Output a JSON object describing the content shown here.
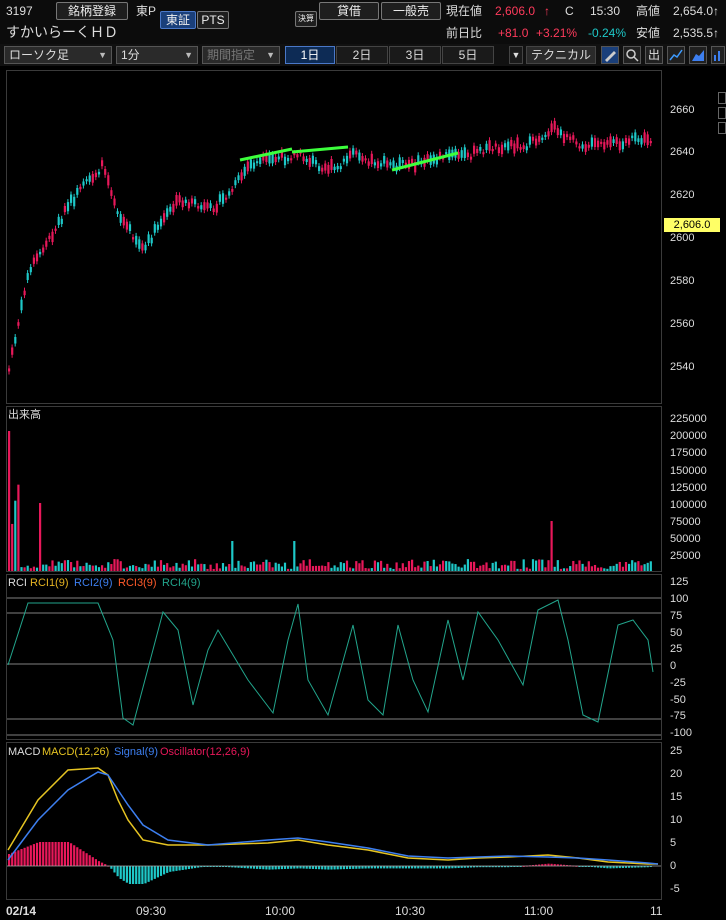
{
  "header": {
    "code": "3197",
    "register_label": "銘柄登録",
    "market": "東P",
    "exchange_tabs": [
      "東証",
      "PTS"
    ],
    "kessan_badge": "決算",
    "margin_loan": "貸借",
    "margin_general": "一般売",
    "current_label": "現在値",
    "current_value": "2,606.0",
    "current_arrow": "↑",
    "close_mark": "C",
    "time": "15:30",
    "high_label": "高値",
    "high_value": "2,654.0↑",
    "name": "すかいらーくＨＤ",
    "change_label": "前日比",
    "change_value": "+81.0",
    "change_pct": "+3.21%",
    "sub_pct": "-0.24%",
    "low_label": "安値",
    "low_value": "2,535.5↑"
  },
  "toolbar": {
    "chart_type": "ローソク足",
    "interval": "1分",
    "period": "期間指定",
    "day_tabs": [
      "1日",
      "2日",
      "3日",
      "5日"
    ],
    "technical": "テクニカル",
    "out_label": "出"
  },
  "colors": {
    "up": "#e8185a",
    "down": "#1ec8c8",
    "trend": "#3cff3c",
    "price_tag": "#ffff66"
  },
  "price_panel": {
    "ticks": [
      "2660",
      "2640",
      "2620",
      "2600",
      "2580",
      "2560",
      "2540"
    ],
    "current_tag": "2,606.0"
  },
  "volume_panel": {
    "title": "出来高",
    "ticks": [
      "225000",
      "200000",
      "175000",
      "150000",
      "125000",
      "100000",
      "75000",
      "50000",
      "25000"
    ]
  },
  "rci_panel": {
    "title": "RCI",
    "legend": [
      "RCI1(9)",
      "RCI2(9)",
      "RCI3(9)",
      "RCI4(9)"
    ],
    "legend_colors": [
      "#e6b422",
      "#3d7ff0",
      "#ff5a2a",
      "#22a58c"
    ],
    "ticks": [
      "125",
      "100",
      "75",
      "50",
      "25",
      "0",
      "-25",
      "-50",
      "-75",
      "-100"
    ]
  },
  "macd_panel": {
    "title": "MACD",
    "legend": [
      "MACD(12,26)",
      "Signal(9)",
      "Oscillator(12,26,9)"
    ],
    "legend_colors": [
      "#e6c422",
      "#3d7ff0",
      "#e8185a"
    ],
    "ticks": [
      "25",
      "20",
      "15",
      "10",
      "5",
      "0",
      "-5"
    ]
  },
  "time_axis": {
    "labels": [
      "02/14",
      "09:30",
      "10:00",
      "10:30",
      "11:00",
      "11"
    ]
  }
}
